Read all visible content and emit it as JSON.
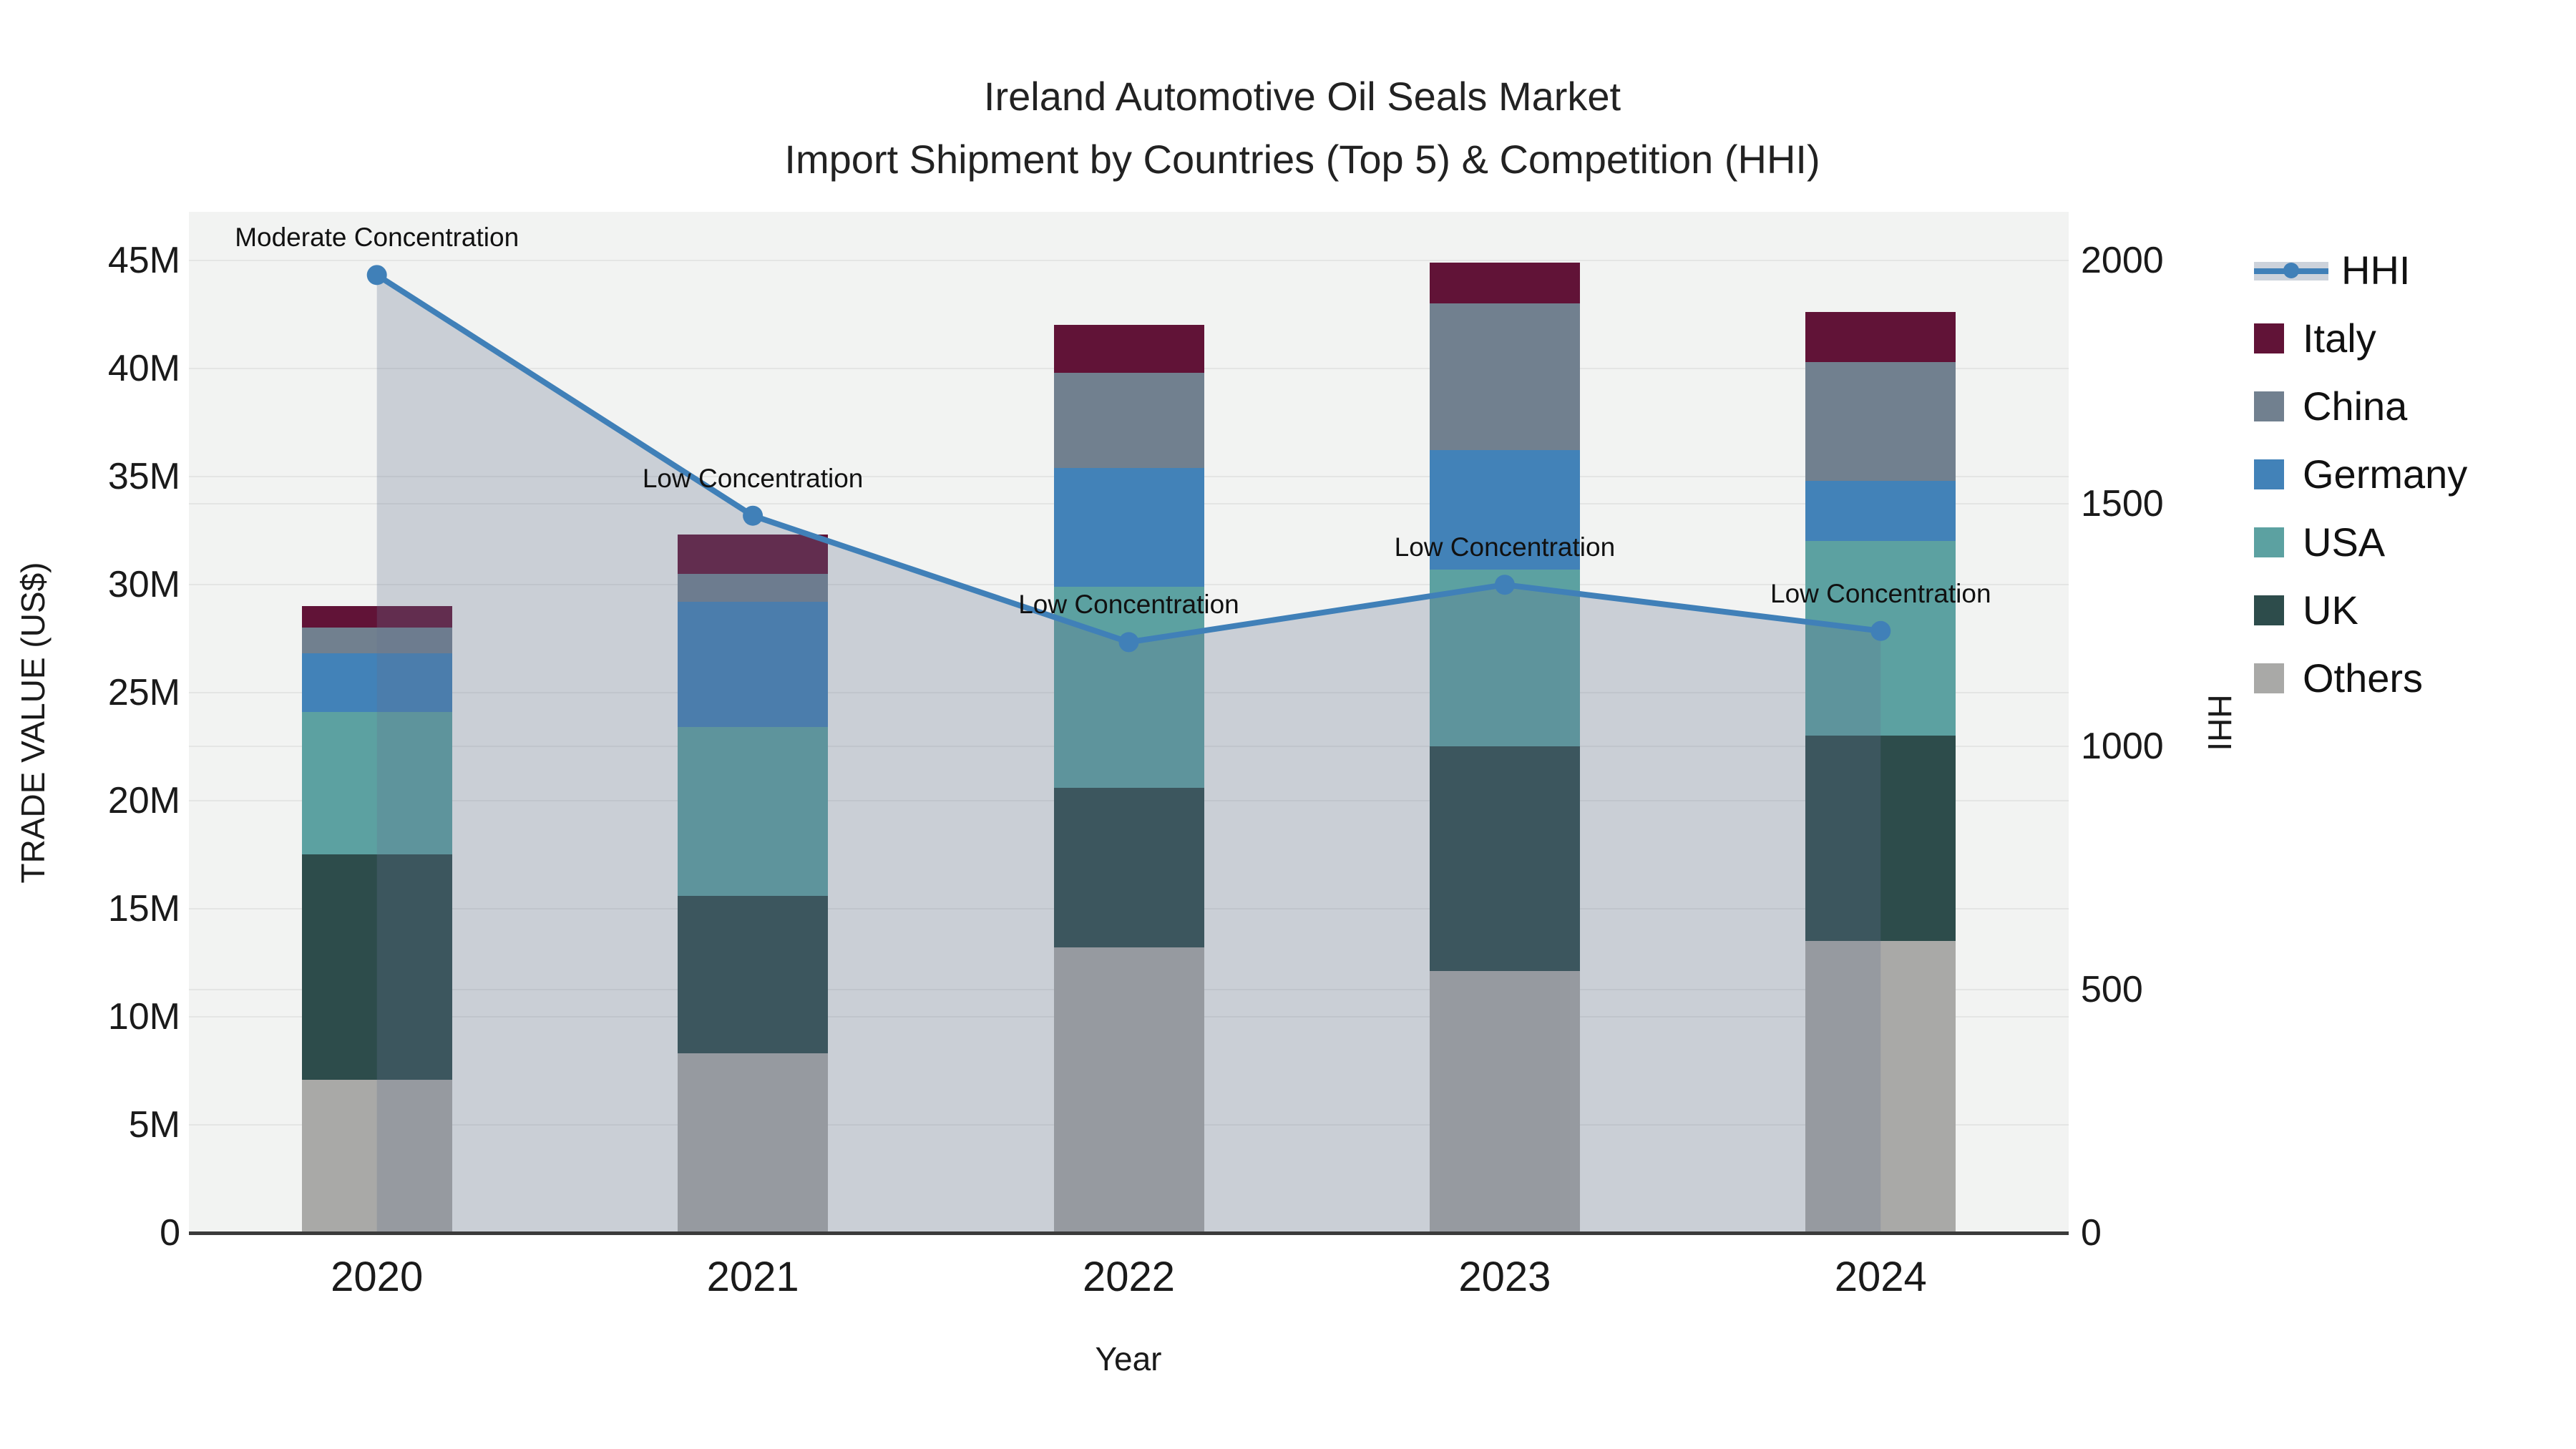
{
  "title": {
    "line1": "Ireland Automotive Oil Seals Market",
    "line2": "Import Shipment by Countries (Top 5) & Competition (HHI)"
  },
  "chart_data": {
    "type": "combo: stacked bar (left axis) + line+area (right axis)",
    "categories": [
      "2020",
      "2021",
      "2022",
      "2023",
      "2024"
    ],
    "bar_value_unit": "million US$",
    "series": [
      {
        "name": "Others",
        "color": "#a9a9a7",
        "values": [
          7.1,
          8.3,
          13.2,
          12.1,
          13.5
        ]
      },
      {
        "name": "UK",
        "color": "#2d4c4b",
        "values": [
          10.4,
          7.3,
          7.4,
          10.4,
          9.5
        ]
      },
      {
        "name": "USA",
        "color": "#5ca1a1",
        "values": [
          6.6,
          7.8,
          9.3,
          8.2,
          9.0
        ]
      },
      {
        "name": "Germany",
        "color": "#4282b8",
        "values": [
          2.7,
          5.8,
          5.5,
          5.5,
          2.8
        ]
      },
      {
        "name": "China",
        "color": "#71808f",
        "values": [
          1.2,
          1.3,
          4.4,
          6.8,
          5.5
        ]
      },
      {
        "name": "Italy",
        "color": "#611337",
        "values": [
          1.0,
          1.8,
          2.2,
          1.9,
          2.3
        ]
      }
    ],
    "bar_totals": [
      29.0,
      32.3,
      42.0,
      44.9,
      42.6
    ],
    "line_series": {
      "name": "HHI",
      "color": "#4080b8",
      "area_fill_color": "rgba(100,115,145,0.28)",
      "values": [
        1970,
        1475,
        1215,
        1333,
        1238
      ]
    },
    "annotations": [
      {
        "x": "2020",
        "text": "Moderate Concentration"
      },
      {
        "x": "2021",
        "text": "Low Concentration"
      },
      {
        "x": "2022",
        "text": "Low Concentration"
      },
      {
        "x": "2023",
        "text": "Low Concentration"
      },
      {
        "x": "2024",
        "text": "Low Concentration"
      }
    ],
    "left_axis": {
      "title": "TRADE VALUE (US$)",
      "ticks": [
        {
          "v": 0,
          "label": "0"
        },
        {
          "v": 5,
          "label": "5M"
        },
        {
          "v": 10,
          "label": "10M"
        },
        {
          "v": 15,
          "label": "15M"
        },
        {
          "v": 20,
          "label": "20M"
        },
        {
          "v": 25,
          "label": "25M"
        },
        {
          "v": 30,
          "label": "30M"
        },
        {
          "v": 35,
          "label": "35M"
        },
        {
          "v": 40,
          "label": "40M"
        },
        {
          "v": 45,
          "label": "45M"
        }
      ],
      "range": [
        0,
        47.24
      ],
      "grid": true
    },
    "right_axis": {
      "title": "HHI",
      "ticks": [
        {
          "v": 0,
          "label": "0"
        },
        {
          "v": 500,
          "label": "500"
        },
        {
          "v": 1000,
          "label": "1000"
        },
        {
          "v": 1500,
          "label": "1500"
        },
        {
          "v": 2000,
          "label": "2000"
        }
      ],
      "range": [
        0,
        2100
      ],
      "grid": true
    },
    "x_axis": {
      "title": "Year"
    },
    "legend_position": "right"
  },
  "legend": {
    "items": [
      {
        "label": "HHI",
        "type": "line",
        "color": "#4080b8"
      },
      {
        "label": "Italy",
        "type": "square",
        "color": "#611337"
      },
      {
        "label": "China",
        "type": "square",
        "color": "#71808f"
      },
      {
        "label": "Germany",
        "type": "square",
        "color": "#4282b8"
      },
      {
        "label": "USA",
        "type": "square",
        "color": "#5ca1a1"
      },
      {
        "label": "UK",
        "type": "square",
        "color": "#2d4c4b"
      },
      {
        "label": "Others",
        "type": "square",
        "color": "#a9a9a7"
      }
    ]
  }
}
